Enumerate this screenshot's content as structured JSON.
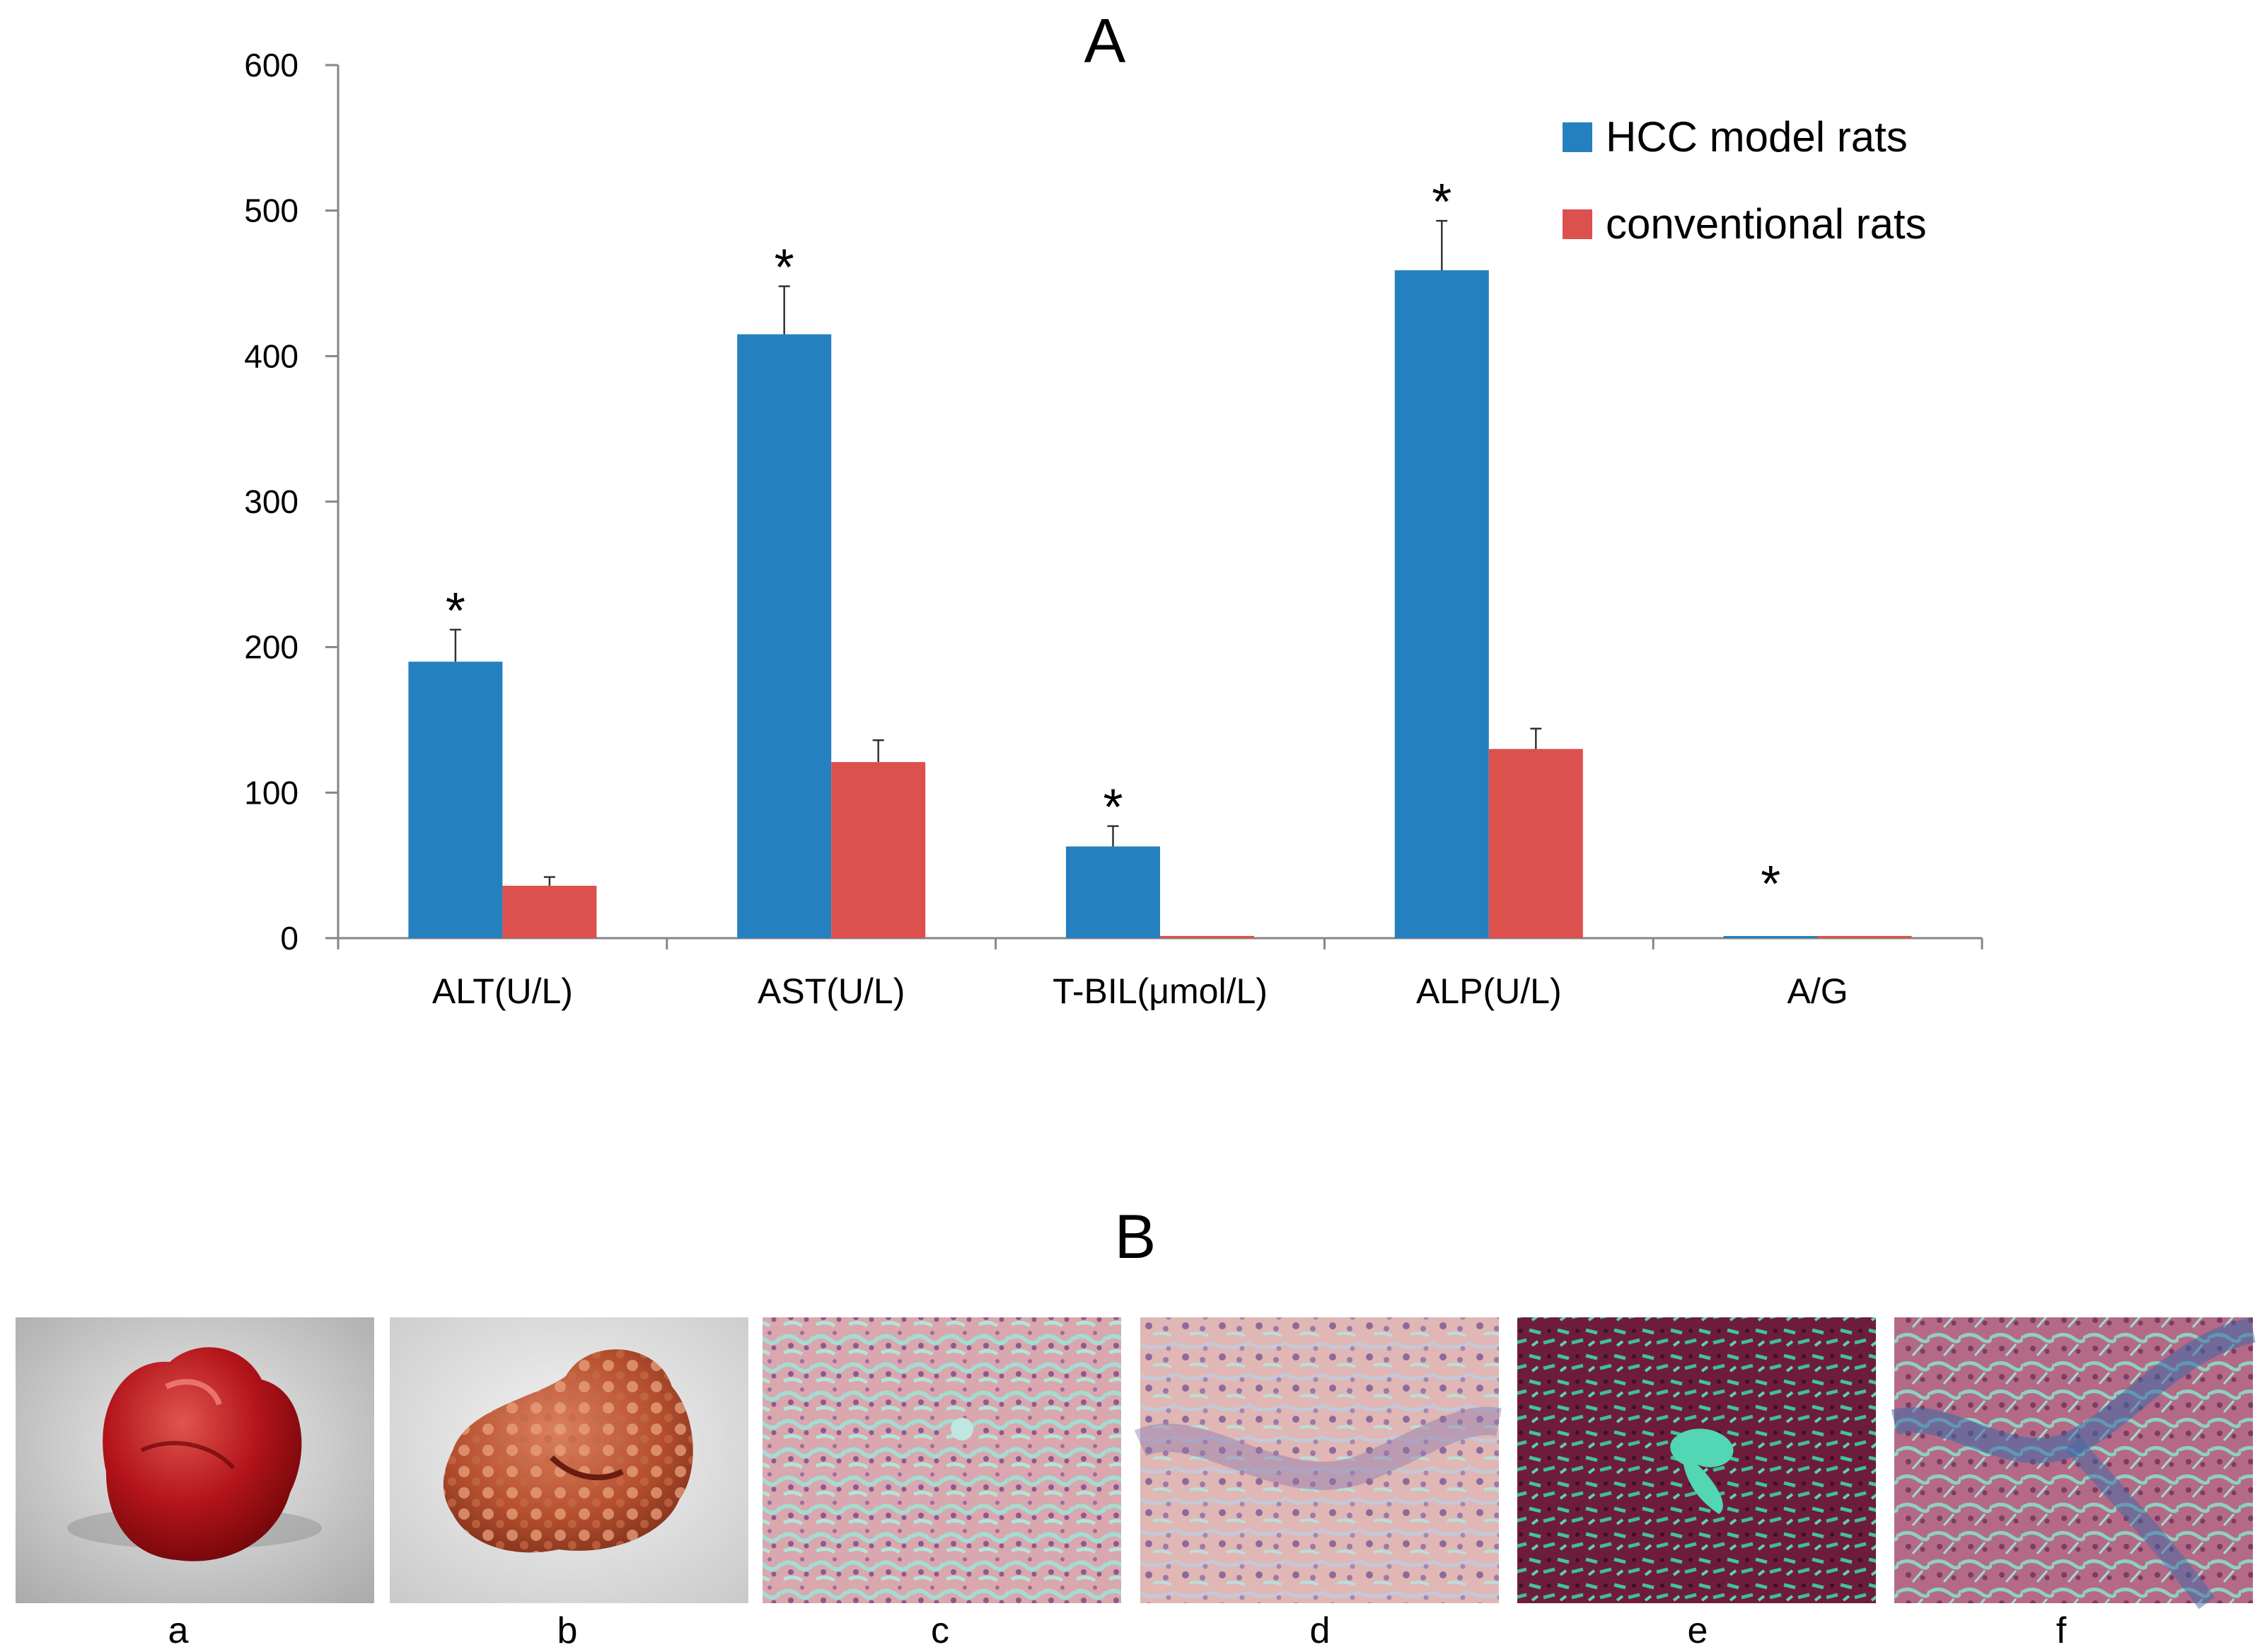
{
  "panels": {
    "top_label": "A",
    "bottom_label": "B"
  },
  "chart_data": {
    "type": "bar",
    "title": "A",
    "xlabel": "",
    "ylabel": "",
    "ylim": [
      0,
      600
    ],
    "yticks": [
      0,
      100,
      200,
      300,
      400,
      500,
      600
    ],
    "ytick_labels": [
      "0",
      "100",
      "200",
      "300",
      "400",
      "500",
      "600"
    ],
    "grid": false,
    "legend_position": "top-right",
    "categories": [
      "ALT(U/L)",
      "AST(U/L)",
      "T-BIL(μmol/L)",
      "ALP(U/L)",
      "A/G"
    ],
    "series": [
      {
        "name": "HCC model rats",
        "color": "#2580C0",
        "values": [
          190,
          415,
          63,
          459,
          1.2
        ],
        "errors": [
          22,
          33,
          14,
          34,
          0
        ]
      },
      {
        "name": "conventional rats",
        "color": "#DC504D",
        "values": [
          36,
          121,
          1.5,
          130,
          1.5
        ],
        "errors": [
          6,
          15,
          0,
          14,
          0
        ]
      }
    ],
    "significance": [
      "*",
      "*",
      "*",
      "*",
      "*"
    ]
  },
  "images": [
    {
      "caption": "a",
      "kind": "photo-normal-liver"
    },
    {
      "caption": "b",
      "kind": "photo-tumor-liver"
    },
    {
      "caption": "c",
      "kind": "he-stain-normal"
    },
    {
      "caption": "d",
      "kind": "he-stain-hcc"
    },
    {
      "caption": "e",
      "kind": "masson-stain-normal"
    },
    {
      "caption": "f",
      "kind": "masson-stain-fibrosis"
    }
  ]
}
